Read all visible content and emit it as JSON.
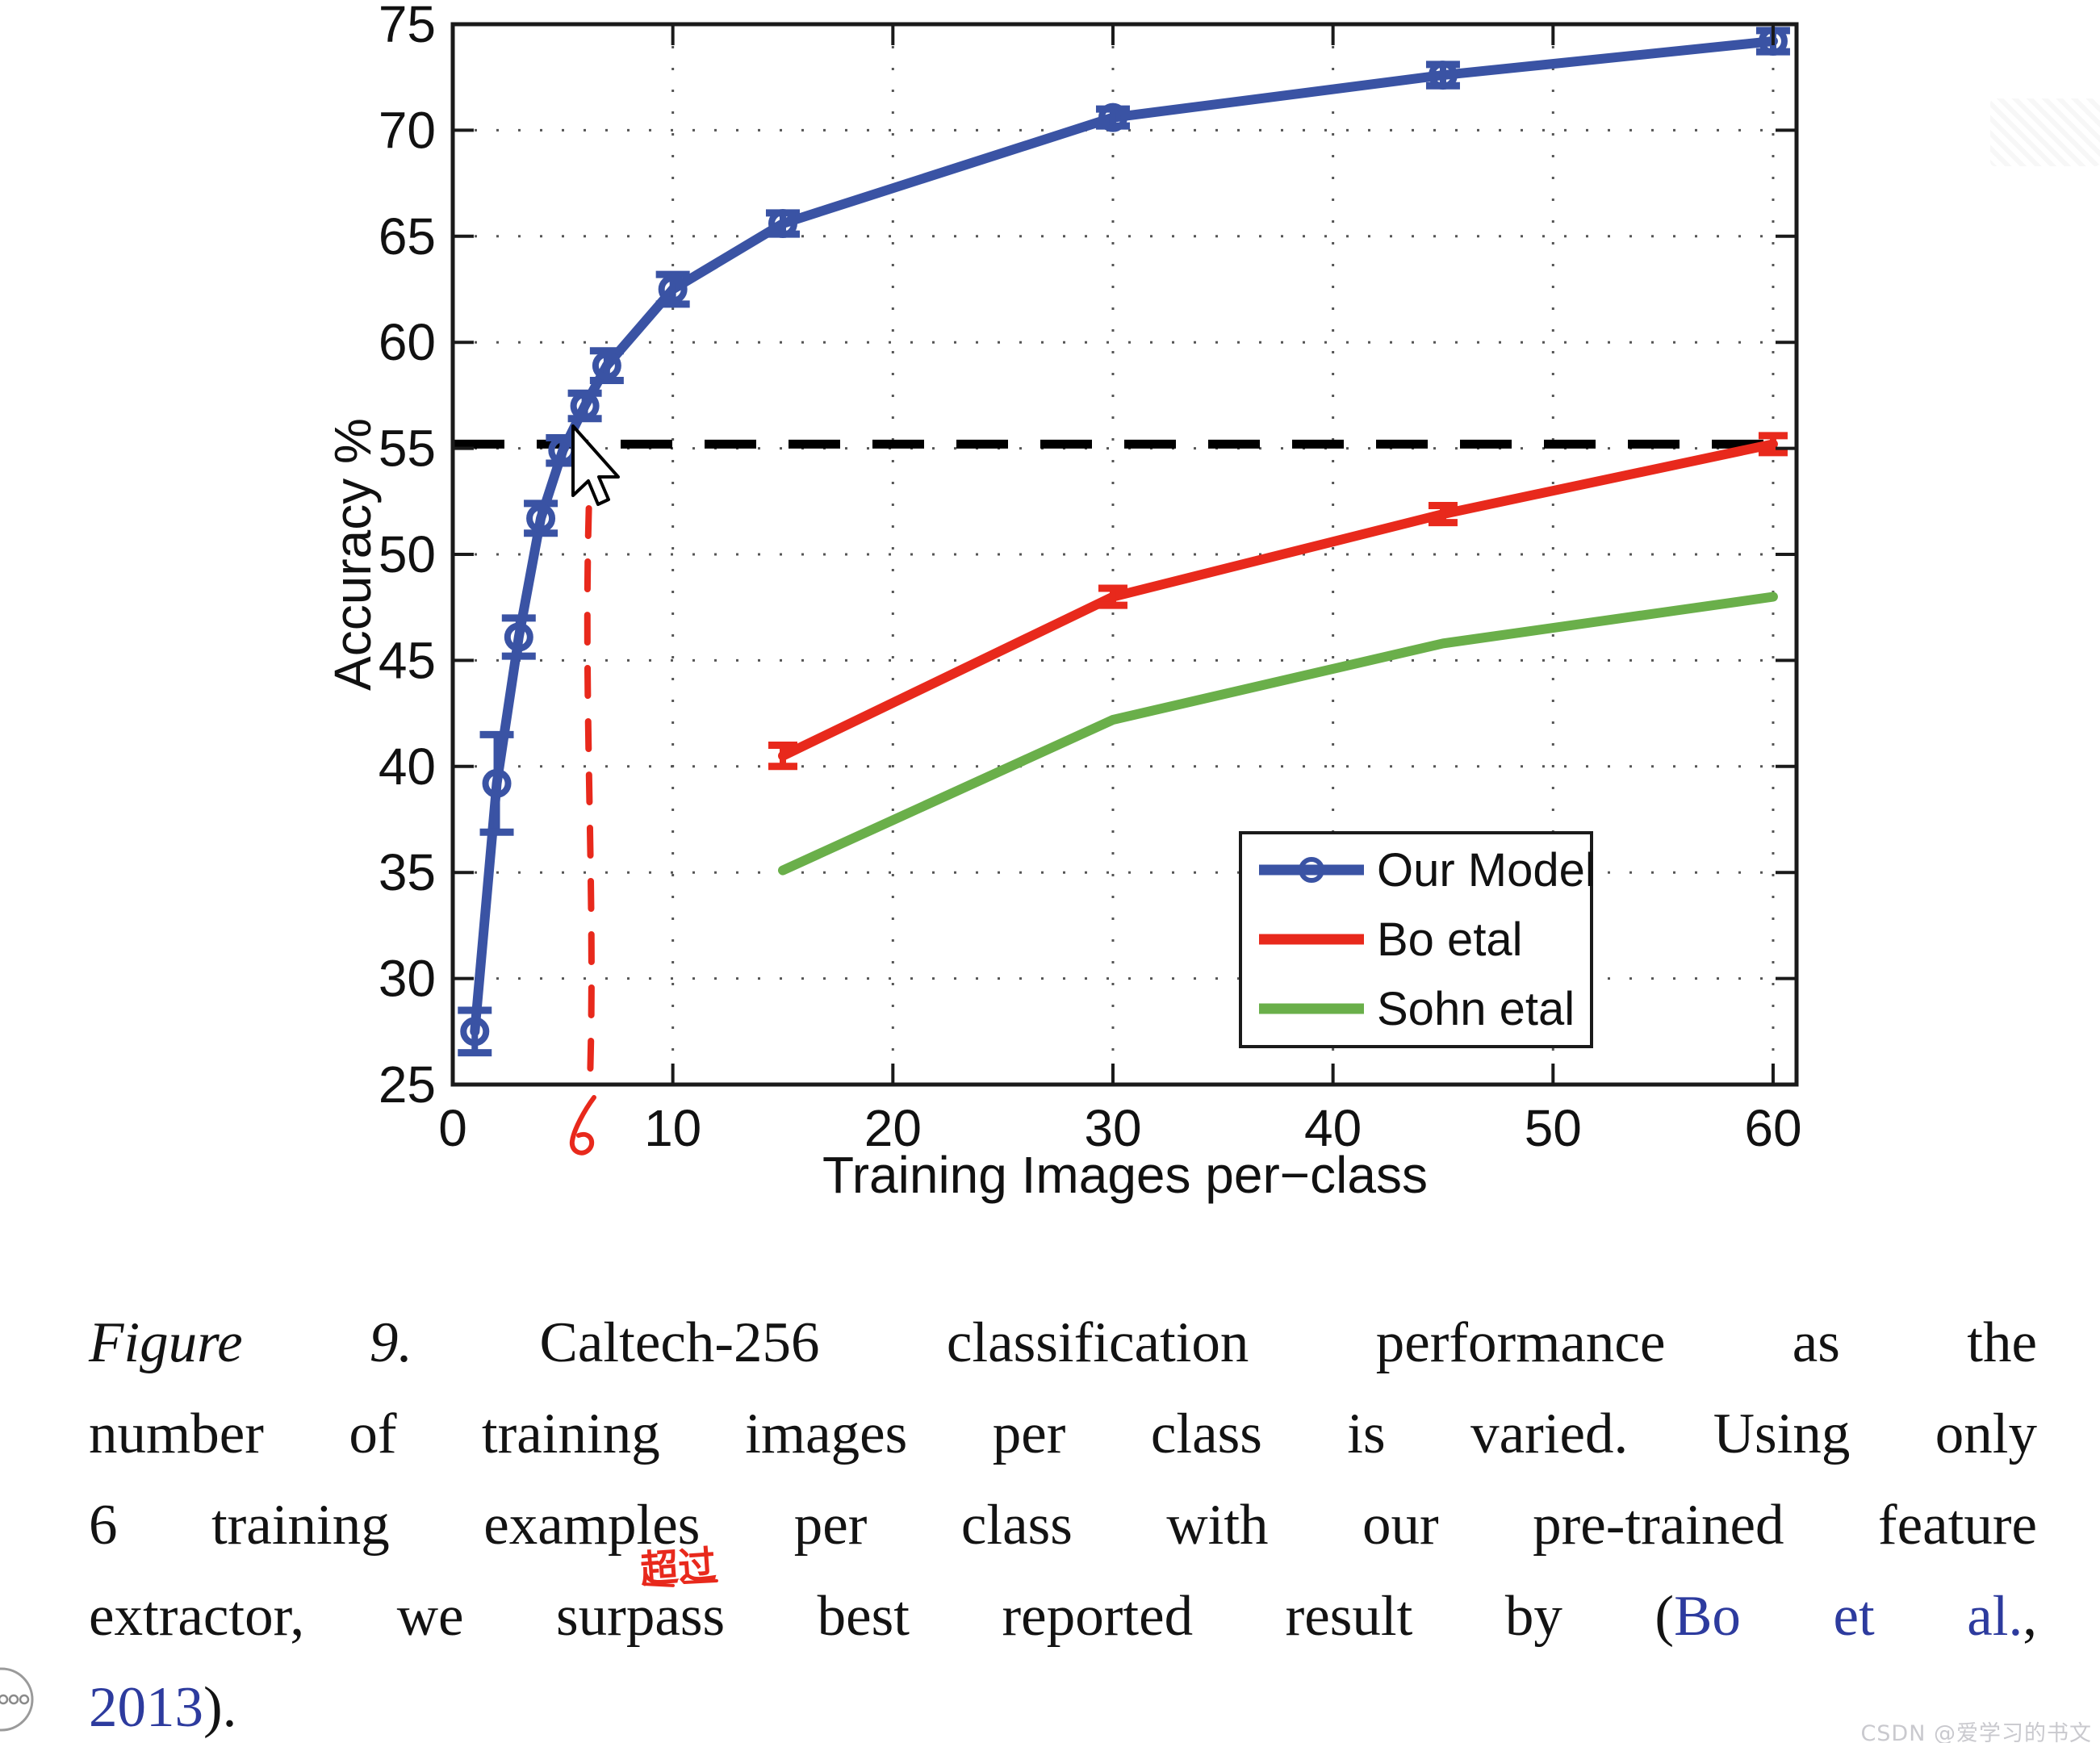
{
  "chart_data": {
    "type": "line",
    "title": "",
    "xlabel": "Training Images per−class",
    "ylabel": "Accuracy %",
    "xlim": [
      0,
      61
    ],
    "ylim": [
      25,
      75
    ],
    "xticks": [
      0,
      10,
      20,
      30,
      40,
      50,
      60
    ],
    "yticks": [
      25,
      30,
      35,
      40,
      45,
      50,
      55,
      60,
      65,
      70,
      75
    ],
    "grid": "dotted",
    "legend": {
      "position": "lower-right",
      "border": true
    },
    "series": [
      {
        "name": "Our Model",
        "color": "#3a53a4",
        "marker": "o",
        "x": [
          1,
          2,
          3,
          4,
          5,
          6,
          7,
          10,
          15,
          30,
          45,
          60
        ],
        "y": [
          27.5,
          39.2,
          46.1,
          51.7,
          54.9,
          57.0,
          58.9,
          62.5,
          65.6,
          70.6,
          72.6,
          74.2
        ],
        "yerr": [
          1.0,
          2.3,
          0.9,
          0.7,
          0.6,
          0.6,
          0.7,
          0.7,
          0.5,
          0.4,
          0.5,
          0.5
        ]
      },
      {
        "name": "Bo etal",
        "color": "#e8291c",
        "marker": "errorcap",
        "x": [
          15,
          30,
          45,
          60
        ],
        "y": [
          40.5,
          48.0,
          51.9,
          55.2
        ],
        "yerr": [
          0.5,
          0.4,
          0.4,
          0.4
        ]
      },
      {
        "name": "Sohn etal",
        "color": "#6aaf4a",
        "marker": "none",
        "x": [
          15,
          30,
          45,
          60
        ],
        "y": [
          35.1,
          42.2,
          45.8,
          48.0
        ],
        "yerr": [
          0,
          0,
          0,
          0
        ]
      }
    ],
    "reference_line": {
      "orientation": "horizontal",
      "y": 55.2,
      "style": "dashed",
      "color": "#000000"
    },
    "hand_annotation": {
      "x": 6,
      "style": "dashed-vertical-handdrawn",
      "color": "#e8291c",
      "label": "6"
    }
  },
  "caption": {
    "link_color": "#2d3b9e",
    "lines": [
      [
        {
          "t": "Figure 9.",
          "s": "i"
        },
        {
          "t": " Caltech-256 classification performance as the",
          "s": "n"
        }
      ],
      [
        {
          "t": "number of training images per class is varied. Using only",
          "s": "n"
        }
      ],
      [
        {
          "t": "6 training examples per class with our pre-trained feature",
          "s": "n"
        }
      ],
      [
        {
          "t": "extractor, we surpass best reported result by (",
          "s": "n"
        },
        {
          "t": "Bo et al.",
          "s": "b"
        },
        {
          "t": ",",
          "s": "n"
        }
      ],
      [
        {
          "t": "2013",
          "s": "b"
        },
        {
          "t": ").",
          "s": "n"
        }
      ]
    ]
  },
  "overlay": {
    "surpass_note": "超过",
    "note_color": "#e8291c"
  },
  "watermarks": {
    "bottom_right": "CSDN @爱学习的书文"
  },
  "player_button": {
    "dot_count": 3
  }
}
